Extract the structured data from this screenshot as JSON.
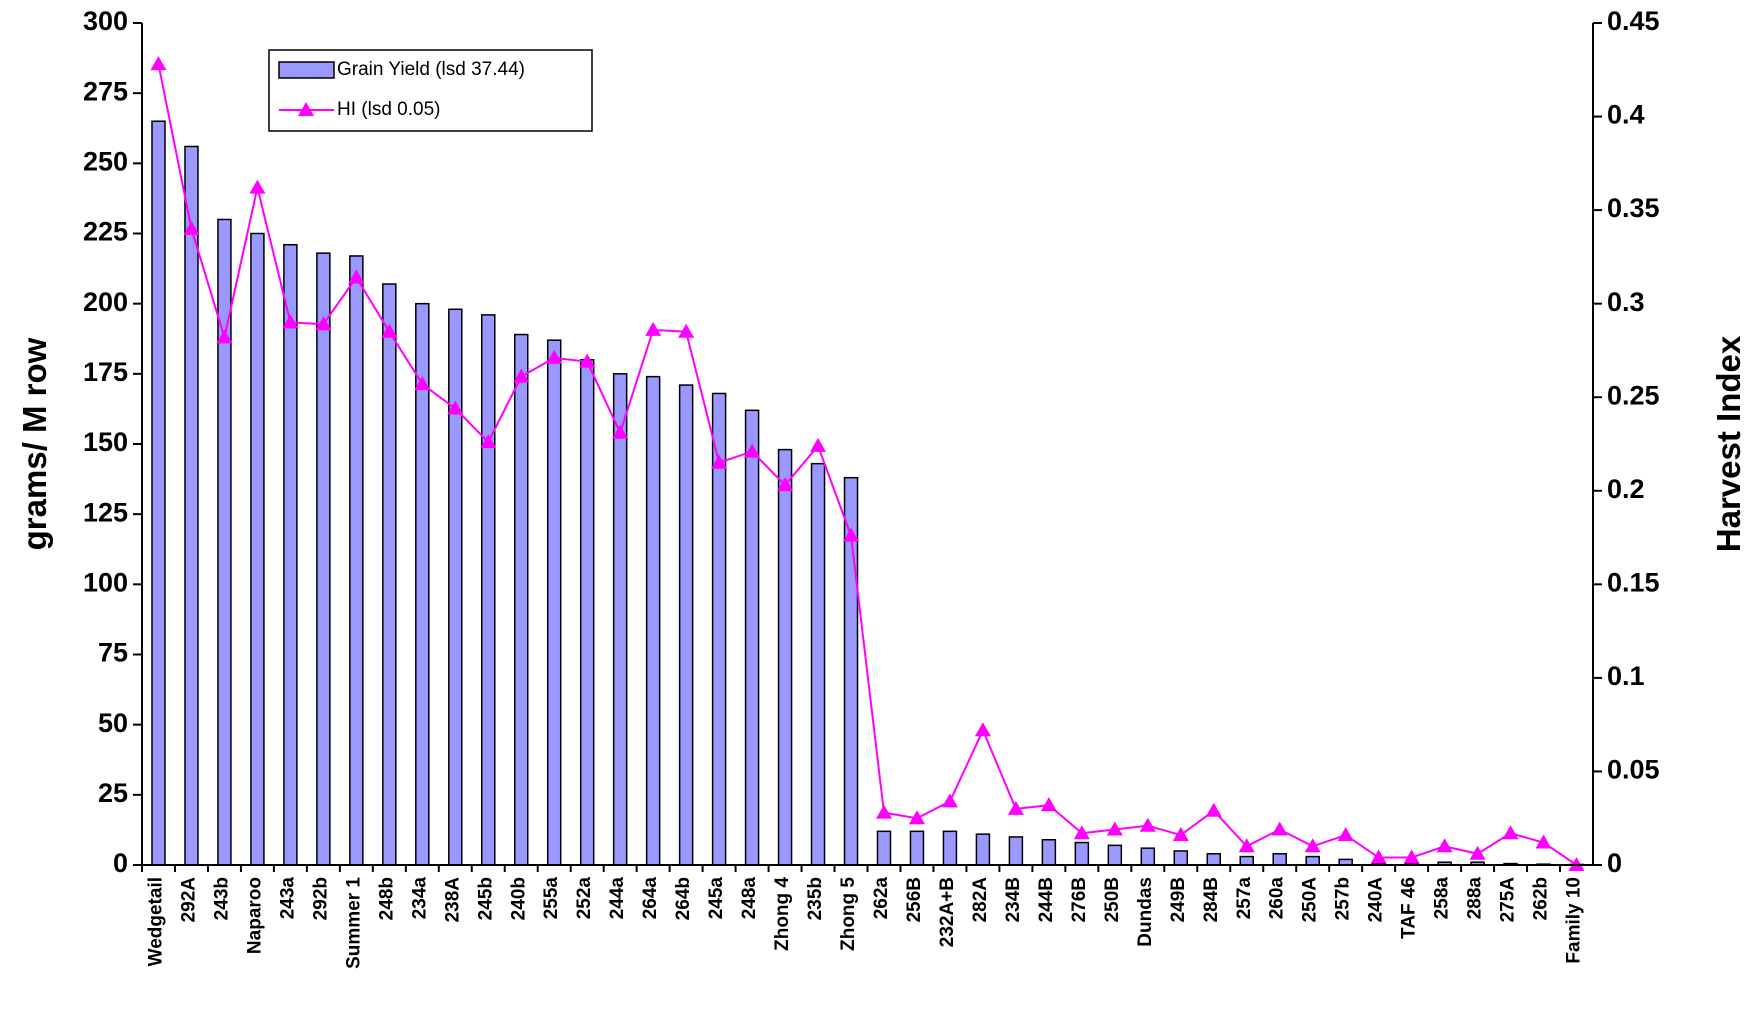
{
  "chart_data": {
    "type": "bar_line",
    "y_label": "grams/ M row",
    "y2_label": "Harvest Index",
    "categories": [
      "Wedgetail",
      "292A",
      "243b",
      "Naparoo",
      "243a",
      "292b",
      "Summer 1",
      "248b",
      "234a",
      "238A",
      "245b",
      "240b",
      "255a",
      "252a",
      "244a",
      "264a",
      "264b",
      "245a",
      "248a",
      "Zhong 4",
      "235b",
      "Zhong 5",
      "262a",
      "256B",
      "232A+B",
      "282A",
      "234B",
      "244B",
      "276B",
      "250B",
      "Dundas",
      "249B",
      "284B",
      "257a",
      "260a",
      "250A",
      "257b",
      "240A",
      "TAF 46",
      "258a",
      "288a",
      "275A",
      "262b",
      "Family 10"
    ],
    "series": [
      {
        "name": "Grain Yield (lsd 37.44)",
        "type": "bar",
        "color": "#9999ff",
        "values": [
          265,
          256,
          230,
          225,
          221,
          218,
          217,
          207,
          200,
          198,
          196,
          189,
          187,
          180,
          175,
          174,
          171,
          168,
          162,
          148,
          143,
          138,
          12,
          12,
          12,
          11,
          10,
          9,
          8,
          7,
          6,
          5,
          4,
          3,
          4,
          3,
          2,
          0.5,
          0.3,
          1,
          1,
          0.5,
          0.3,
          0.2
        ]
      },
      {
        "name": "HI (lsd 0.05)",
        "type": "line",
        "axis": "y2",
        "color": "#ff00ff",
        "values": [
          0.428,
          0.34,
          0.282,
          0.362,
          0.29,
          0.289,
          0.314,
          0.285,
          0.257,
          0.244,
          0.226,
          0.261,
          0.271,
          0.269,
          0.231,
          0.286,
          0.285,
          0.215,
          0.221,
          0.203,
          0.224,
          0.176,
          0.028,
          0.025,
          0.034,
          0.072,
          0.03,
          0.032,
          0.017,
          0.019,
          0.021,
          0.016,
          0.029,
          0.01,
          0.019,
          0.01,
          0.016,
          0.004,
          0.004,
          0.01,
          0.006,
          0.017,
          0.012,
          0
        ]
      }
    ],
    "ylim": [
      0,
      300
    ],
    "yticks": [
      0,
      25,
      50,
      75,
      100,
      125,
      150,
      175,
      200,
      225,
      250,
      275,
      300
    ],
    "y2lim": [
      0,
      0.45
    ],
    "y2ticks": [
      0,
      0.05,
      0.1,
      0.15,
      0.2,
      0.25,
      0.3,
      0.35,
      0.4,
      0.45
    ],
    "legend": "upper left"
  }
}
